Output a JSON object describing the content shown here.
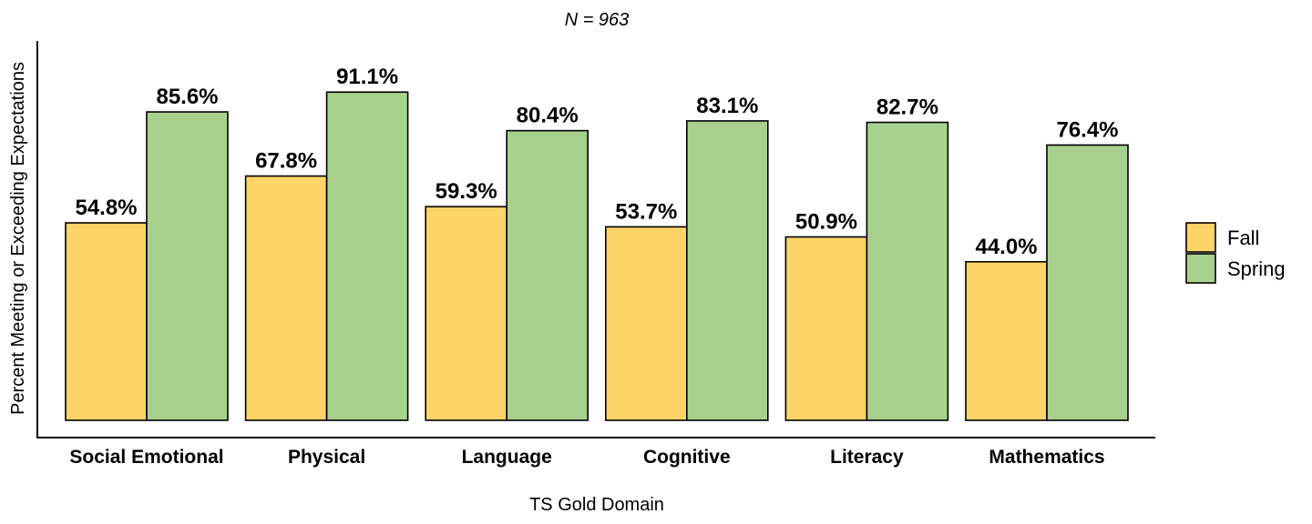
{
  "chart_data": {
    "type": "bar",
    "title": "N =  963",
    "xlabel": "TS Gold Domain",
    "ylabel": "Percent Meeting or Exceeding Expectations",
    "categories": [
      "Social Emotional",
      "Physical",
      "Language",
      "Cognitive",
      "Literacy",
      "Mathematics"
    ],
    "series": [
      {
        "name": "Fall",
        "color": "#FDD467",
        "values": [
          54.8,
          67.8,
          59.3,
          53.7,
          50.9,
          44.0
        ],
        "labels": [
          "54.8%",
          "67.8%",
          "59.3%",
          "53.7%",
          "50.9%",
          "44.0%"
        ]
      },
      {
        "name": "Spring",
        "color": "#A8D18D",
        "values": [
          85.6,
          91.1,
          80.4,
          83.1,
          82.7,
          76.4
        ],
        "labels": [
          "85.6%",
          "91.1%",
          "80.4%",
          "83.1%",
          "82.7%",
          "76.4%"
        ]
      }
    ],
    "ylim": [
      0,
      100
    ],
    "grid": false,
    "legend": "right"
  }
}
